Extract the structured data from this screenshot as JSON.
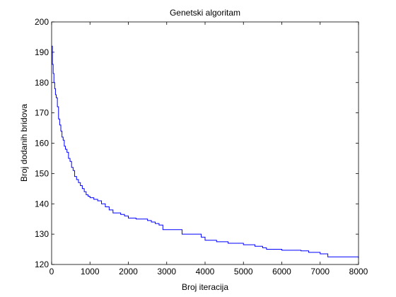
{
  "figure": {
    "background": "#ffffff"
  },
  "chart_data": {
    "type": "line",
    "title": "Genetski algoritam",
    "xlabel": "Broj iteracija",
    "ylabel": "Broj dodanih bridova",
    "xlim": [
      0,
      8000
    ],
    "ylim": [
      120,
      200
    ],
    "x_ticks": [
      0,
      1000,
      2000,
      3000,
      4000,
      5000,
      6000,
      7000,
      8000
    ],
    "y_ticks": [
      120,
      130,
      140,
      150,
      160,
      170,
      180,
      190,
      200
    ],
    "grid": false,
    "line_color": "#0000ff",
    "series": [
      {
        "step": true,
        "x": [
          0,
          20,
          40,
          60,
          80,
          100,
          120,
          150,
          180,
          210,
          240,
          270,
          300,
          330,
          360,
          400,
          440,
          480,
          520,
          560,
          600,
          650,
          700,
          750,
          800,
          850,
          900,
          950,
          1000,
          1100,
          1200,
          1300,
          1400,
          1500,
          1600,
          1800,
          1900,
          2000,
          2200,
          2400,
          2500,
          2600,
          2700,
          2800,
          2900,
          3300,
          3400,
          3800,
          3900,
          4000,
          4300,
          4600,
          5000,
          5100,
          5300,
          5500,
          5600,
          6000,
          6500,
          6700,
          7000,
          7200,
          7500,
          8000
        ],
        "y": [
          192,
          186,
          183,
          180,
          178,
          176,
          175,
          172,
          168,
          166,
          164,
          162,
          161,
          159,
          158,
          157,
          155,
          154,
          152,
          151,
          149,
          148,
          147,
          146,
          145,
          144,
          143,
          142.5,
          142,
          141.5,
          141,
          140,
          139,
          138,
          137,
          136.5,
          136,
          135.3,
          135,
          135,
          134.5,
          134,
          133.5,
          133,
          131.5,
          131.5,
          130,
          130,
          129,
          128,
          127.5,
          127,
          126.5,
          126.5,
          126,
          125.5,
          125,
          124.7,
          124.5,
          124,
          123.5,
          122.5,
          122.5,
          122
        ]
      }
    ]
  }
}
